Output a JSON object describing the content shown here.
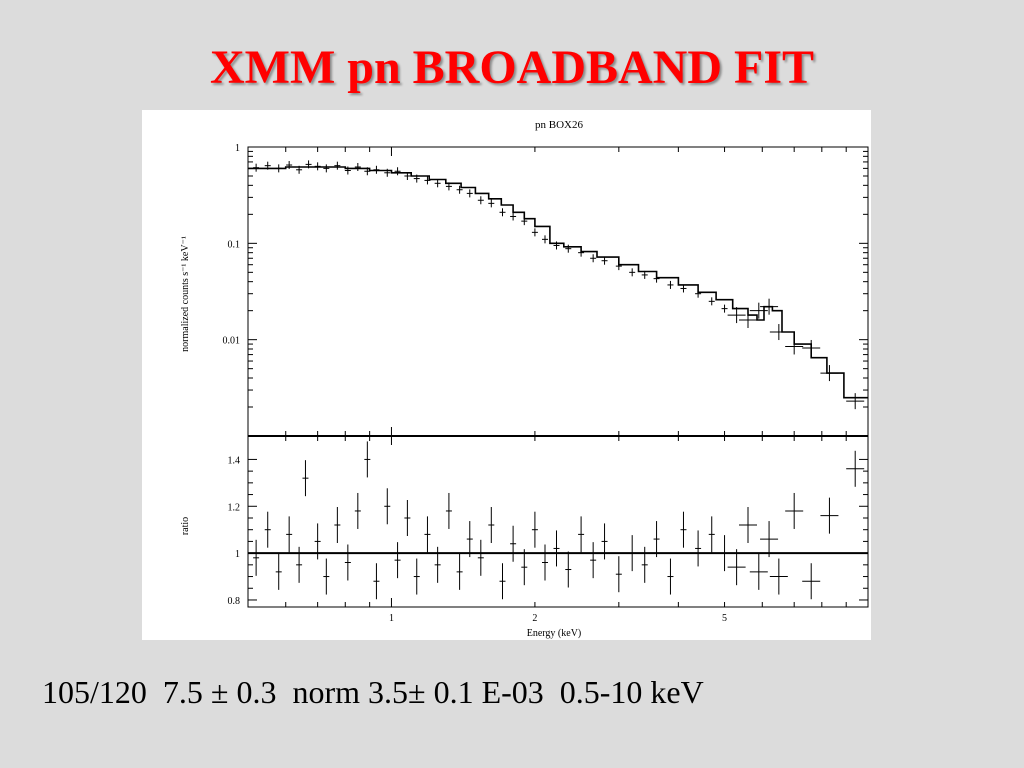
{
  "slide": {
    "title": "XMM pn BROADBAND FIT",
    "fit_summary": "105/120  7.5 ± 0.3  norm 3.5± 0.1 E-03  0.5-10 keV"
  },
  "colors": {
    "background": "#dcdcdc",
    "title": "#ff0000",
    "plot_background": "#ffffff",
    "ink": "#000000"
  },
  "chart_data": [
    {
      "type": "scatter",
      "title": "pn BOX26",
      "xlabel": "",
      "ylabel": "normalized counts s⁻¹ keV⁻¹",
      "xscale": "log",
      "yscale": "log",
      "xlim": [
        0.5,
        10
      ],
      "ylim": [
        0.001,
        1
      ],
      "yticks": [
        "1",
        "0.1",
        "0.01"
      ],
      "grid": false,
      "series": [
        {
          "role": "data",
          "points": [
            {
              "x": 0.52,
              "y": 0.61
            },
            {
              "x": 0.55,
              "y": 0.64
            },
            {
              "x": 0.58,
              "y": 0.6
            },
            {
              "x": 0.61,
              "y": 0.65
            },
            {
              "x": 0.64,
              "y": 0.58
            },
            {
              "x": 0.67,
              "y": 0.66
            },
            {
              "x": 0.7,
              "y": 0.63
            },
            {
              "x": 0.73,
              "y": 0.6
            },
            {
              "x": 0.77,
              "y": 0.64
            },
            {
              "x": 0.81,
              "y": 0.57
            },
            {
              "x": 0.85,
              "y": 0.62
            },
            {
              "x": 0.89,
              "y": 0.56
            },
            {
              "x": 0.93,
              "y": 0.58
            },
            {
              "x": 0.98,
              "y": 0.54
            },
            {
              "x": 1.03,
              "y": 0.56
            },
            {
              "x": 1.08,
              "y": 0.5
            },
            {
              "x": 1.13,
              "y": 0.47
            },
            {
              "x": 1.19,
              "y": 0.45
            },
            {
              "x": 1.25,
              "y": 0.42
            },
            {
              "x": 1.32,
              "y": 0.39
            },
            {
              "x": 1.39,
              "y": 0.36
            },
            {
              "x": 1.46,
              "y": 0.33
            },
            {
              "x": 1.54,
              "y": 0.28
            },
            {
              "x": 1.62,
              "y": 0.26
            },
            {
              "x": 1.71,
              "y": 0.21
            },
            {
              "x": 1.8,
              "y": 0.19
            },
            {
              "x": 1.9,
              "y": 0.17
            },
            {
              "x": 2.0,
              "y": 0.13
            },
            {
              "x": 2.1,
              "y": 0.11
            },
            {
              "x": 2.22,
              "y": 0.095
            },
            {
              "x": 2.35,
              "y": 0.088
            },
            {
              "x": 2.5,
              "y": 0.08
            },
            {
              "x": 2.65,
              "y": 0.07
            },
            {
              "x": 2.8,
              "y": 0.066
            },
            {
              "x": 3.0,
              "y": 0.058
            },
            {
              "x": 3.2,
              "y": 0.05
            },
            {
              "x": 3.4,
              "y": 0.047
            },
            {
              "x": 3.6,
              "y": 0.043
            },
            {
              "x": 3.85,
              "y": 0.037
            },
            {
              "x": 4.1,
              "y": 0.034
            },
            {
              "x": 4.4,
              "y": 0.03
            },
            {
              "x": 4.7,
              "y": 0.025
            },
            {
              "x": 5.0,
              "y": 0.021
            },
            {
              "x": 5.3,
              "y": 0.018
            },
            {
              "x": 5.6,
              "y": 0.016
            },
            {
              "x": 5.9,
              "y": 0.02
            },
            {
              "x": 6.2,
              "y": 0.022
            },
            {
              "x": 6.5,
              "y": 0.012
            },
            {
              "x": 7.0,
              "y": 0.0085
            },
            {
              "x": 7.6,
              "y": 0.0082
            },
            {
              "x": 8.3,
              "y": 0.0045
            },
            {
              "x": 9.4,
              "y": 0.0023
            }
          ]
        },
        {
          "role": "model",
          "x": [
            0.5,
            0.6,
            0.7,
            0.8,
            0.9,
            1.0,
            1.1,
            1.2,
            1.3,
            1.4,
            1.5,
            1.6,
            1.7,
            1.8,
            1.9,
            2.0,
            2.15,
            2.3,
            2.5,
            2.7,
            3.0,
            3.3,
            3.6,
            4.0,
            4.4,
            4.8,
            5.2,
            5.6,
            5.85,
            6.05,
            6.3,
            6.6,
            7.0,
            7.6,
            8.2,
            8.9,
            10.0
          ],
          "y": [
            0.6,
            0.62,
            0.62,
            0.6,
            0.57,
            0.54,
            0.5,
            0.46,
            0.42,
            0.38,
            0.33,
            0.29,
            0.25,
            0.21,
            0.18,
            0.15,
            0.1,
            0.092,
            0.082,
            0.072,
            0.06,
            0.051,
            0.044,
            0.037,
            0.031,
            0.026,
            0.021,
            0.018,
            0.016,
            0.022,
            0.02,
            0.012,
            0.009,
            0.0065,
            0.0045,
            0.0025,
            0.0017
          ]
        }
      ]
    },
    {
      "type": "scatter",
      "title": "",
      "xlabel": "Energy (keV)",
      "ylabel": "ratio",
      "xscale": "log",
      "xlim": [
        0.5,
        10
      ],
      "ylim": [
        0.77,
        1.5
      ],
      "xticks": [
        "1",
        "2",
        "5"
      ],
      "yticks": [
        "1.4",
        "1.2",
        "1",
        "0.8"
      ],
      "reference_line": 1,
      "grid": false,
      "series": [
        {
          "role": "data",
          "points": [
            {
              "x": 0.52,
              "y": 0.98
            },
            {
              "x": 0.55,
              "y": 1.1
            },
            {
              "x": 0.58,
              "y": 0.92
            },
            {
              "x": 0.61,
              "y": 1.08
            },
            {
              "x": 0.64,
              "y": 0.95
            },
            {
              "x": 0.66,
              "y": 1.32
            },
            {
              "x": 0.7,
              "y": 1.05
            },
            {
              "x": 0.73,
              "y": 0.9
            },
            {
              "x": 0.77,
              "y": 1.12
            },
            {
              "x": 0.81,
              "y": 0.96
            },
            {
              "x": 0.85,
              "y": 1.18
            },
            {
              "x": 0.89,
              "y": 1.4
            },
            {
              "x": 0.93,
              "y": 0.88
            },
            {
              "x": 0.98,
              "y": 1.2
            },
            {
              "x": 1.03,
              "y": 0.97
            },
            {
              "x": 1.08,
              "y": 1.15
            },
            {
              "x": 1.13,
              "y": 0.9
            },
            {
              "x": 1.19,
              "y": 1.08
            },
            {
              "x": 1.25,
              "y": 0.95
            },
            {
              "x": 1.32,
              "y": 1.18
            },
            {
              "x": 1.39,
              "y": 0.92
            },
            {
              "x": 1.46,
              "y": 1.06
            },
            {
              "x": 1.54,
              "y": 0.98
            },
            {
              "x": 1.62,
              "y": 1.12
            },
            {
              "x": 1.71,
              "y": 0.88
            },
            {
              "x": 1.8,
              "y": 1.04
            },
            {
              "x": 1.9,
              "y": 0.94
            },
            {
              "x": 2.0,
              "y": 1.1
            },
            {
              "x": 2.1,
              "y": 0.96
            },
            {
              "x": 2.22,
              "y": 1.02
            },
            {
              "x": 2.35,
              "y": 0.93
            },
            {
              "x": 2.5,
              "y": 1.08
            },
            {
              "x": 2.65,
              "y": 0.97
            },
            {
              "x": 2.8,
              "y": 1.05
            },
            {
              "x": 3.0,
              "y": 0.91
            },
            {
              "x": 3.2,
              "y": 1.0
            },
            {
              "x": 3.4,
              "y": 0.95
            },
            {
              "x": 3.6,
              "y": 1.06
            },
            {
              "x": 3.85,
              "y": 0.9
            },
            {
              "x": 4.1,
              "y": 1.1
            },
            {
              "x": 4.4,
              "y": 1.02
            },
            {
              "x": 4.7,
              "y": 1.08
            },
            {
              "x": 5.0,
              "y": 1.0
            },
            {
              "x": 5.3,
              "y": 0.94
            },
            {
              "x": 5.6,
              "y": 1.12
            },
            {
              "x": 5.9,
              "y": 0.92
            },
            {
              "x": 6.2,
              "y": 1.06
            },
            {
              "x": 6.5,
              "y": 0.9
            },
            {
              "x": 7.0,
              "y": 1.18
            },
            {
              "x": 7.6,
              "y": 0.88
            },
            {
              "x": 8.3,
              "y": 1.16
            },
            {
              "x": 9.4,
              "y": 1.36
            }
          ]
        }
      ]
    }
  ]
}
